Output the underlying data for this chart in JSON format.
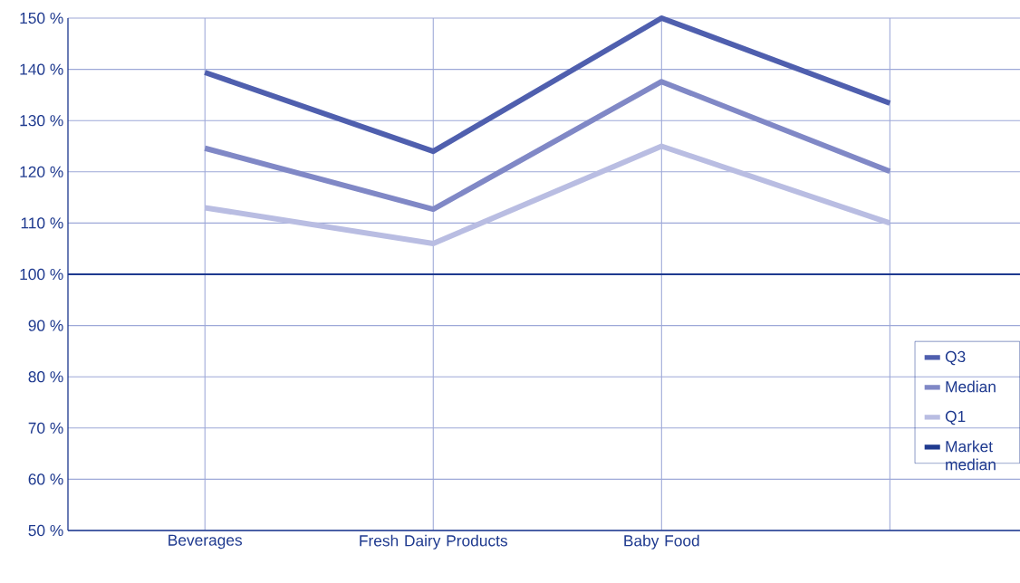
{
  "chart_data": {
    "type": "line",
    "categories": [
      "Beverages",
      "Fresh Dairy Products",
      "Baby Food",
      null
    ],
    "series": [
      {
        "name": "Q3",
        "color": "#4f5fae",
        "values": [
          139.4,
          124,
          150,
          133.4
        ]
      },
      {
        "name": "Median",
        "color": "#8088c6",
        "values": [
          124.6,
          112.7,
          137.6,
          120.1
        ]
      },
      {
        "name": "Q1",
        "color": "#b9bde2",
        "values": [
          113,
          106,
          125,
          110
        ]
      }
    ],
    "ref_lines": [
      {
        "axis": "y",
        "value": 100,
        "label": "Market median",
        "color": "#1f3a8f"
      }
    ],
    "ylim": [
      50,
      150
    ],
    "yticks": [
      {
        "value": 50,
        "label": "50 %"
      },
      {
        "value": 60,
        "label": "60 %"
      },
      {
        "value": 70,
        "label": "70 %"
      },
      {
        "value": 80,
        "label": "80 %"
      },
      {
        "value": 90,
        "label": "90 %"
      },
      {
        "value": 100,
        "label": "100 %"
      },
      {
        "value": 110,
        "label": "110 %"
      },
      {
        "value": 120,
        "label": "120 %"
      },
      {
        "value": 130,
        "label": "130 %"
      },
      {
        "value": 140,
        "label": "140 %"
      },
      {
        "value": 150,
        "label": "150 %"
      }
    ],
    "grid": true,
    "legend": "right",
    "marker": "none",
    "line_style": "solid"
  }
}
